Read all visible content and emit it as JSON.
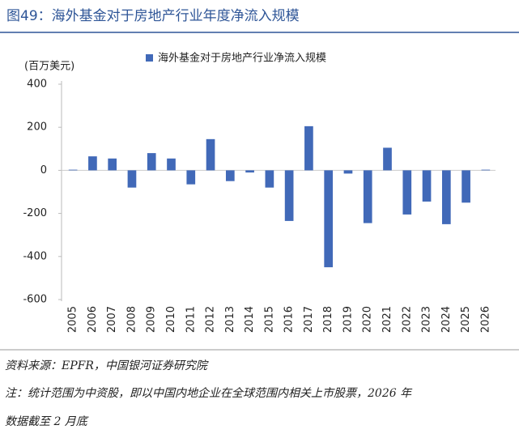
{
  "chart_data": {
    "type": "bar",
    "title": "图49：海外基金对于房地产行业年度净流入规模",
    "y_label": "(百万美元)",
    "categories": [
      "2005",
      "2006",
      "2007",
      "2008",
      "2009",
      "2010",
      "2011",
      "2012",
      "2013",
      "2014",
      "2015",
      "2016",
      "2017",
      "2018",
      "2019",
      "2020",
      "2021",
      "2022",
      "2023",
      "2024",
      "2025",
      "2026"
    ],
    "series": [
      {
        "name": "海外基金对于房地产行业净流入规模",
        "color": "#4169b8",
        "values": [
          3,
          65,
          55,
          -80,
          80,
          55,
          -65,
          145,
          -50,
          -10,
          -80,
          -235,
          205,
          -450,
          -15,
          -245,
          105,
          -205,
          -145,
          -250,
          -150,
          3
        ]
      }
    ],
    "ylim": [
      -600,
      400
    ],
    "yticks": [
      -600,
      -400,
      -200,
      0,
      200,
      400
    ],
    "legend": "top"
  },
  "source": "资料来源：EPFR，中国银河证券研究院",
  "notes": [
    "注：统计范围为中资股，即以中国内地企业在全球范围内相关上市股票，2026 年",
    "数据截至 2 月底"
  ]
}
